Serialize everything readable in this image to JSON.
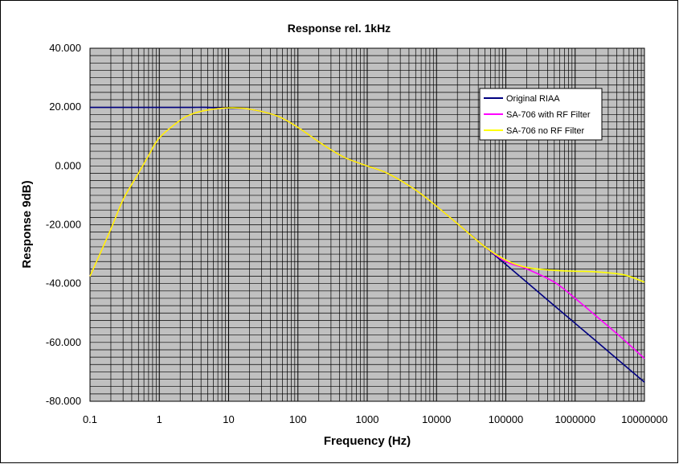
{
  "chart_data": {
    "type": "line",
    "title": "Response rel. 1kHz",
    "xlabel": "Frequency (Hz)",
    "ylabel": "Response 9dB)",
    "xscale": "log",
    "xlim": [
      0.1,
      10000000
    ],
    "ylim": [
      -80,
      40
    ],
    "x_tick_labels": [
      "0.1",
      "1",
      "10",
      "100",
      "1000",
      "10000",
      "100000",
      "1000000",
      "10000000"
    ],
    "y_tick_labels": [
      "40.000",
      "20.000",
      "0.000",
      "-20.000",
      "-40.000",
      "-60.000",
      "-80.000"
    ],
    "grid": true,
    "legend_position": "top-right",
    "plot_background": "#c0c0c0",
    "series": [
      {
        "name": "Original RIAA",
        "color": "#000080",
        "x": [
          0.1,
          1,
          2,
          3,
          5,
          10,
          20,
          50,
          100,
          200,
          300,
          500,
          1000,
          2000,
          5000,
          10000,
          20000,
          50000,
          100000,
          200000,
          500000,
          1000000,
          2000000,
          5000000,
          10000000
        ],
        "y": [
          19.9,
          19.9,
          19.9,
          19.9,
          19.9,
          19.6,
          19.3,
          17.0,
          13.1,
          8.2,
          5.5,
          2.6,
          0.0,
          -2.6,
          -8.2,
          -13.7,
          -19.6,
          -27.5,
          -33.5,
          -39.5,
          -47.5,
          -53.5,
          -59.5,
          -67.5,
          -73.5
        ]
      },
      {
        "name": "SA-706 with RF Filter",
        "color": "#ff00ff",
        "x": [
          0.1,
          0.2,
          0.3,
          0.5,
          0.7,
          1,
          2,
          3,
          5,
          10,
          20,
          50,
          100,
          200,
          300,
          500,
          1000,
          2000,
          5000,
          10000,
          20000,
          50000,
          100000,
          200000,
          500000,
          1000000,
          2000000,
          5000000,
          10000000
        ],
        "y": [
          -37.5,
          -21.5,
          -11.5,
          -2.5,
          3.5,
          9.5,
          15.5,
          17.7,
          19.0,
          19.7,
          19.3,
          17.0,
          13.1,
          8.2,
          5.5,
          2.6,
          0.0,
          -2.6,
          -8.2,
          -13.7,
          -19.6,
          -27.5,
          -32.5,
          -35.0,
          -39.5,
          -45.0,
          -51.0,
          -59.0,
          -65.5
        ]
      },
      {
        "name": "SA-706 no RF Filter",
        "color": "#ffff00",
        "x": [
          0.1,
          0.2,
          0.3,
          0.5,
          0.7,
          1,
          2,
          3,
          5,
          10,
          20,
          50,
          100,
          200,
          300,
          500,
          1000,
          2000,
          5000,
          10000,
          20000,
          50000,
          100000,
          200000,
          500000,
          1000000,
          2000000,
          5000000,
          10000000
        ],
        "y": [
          -37.5,
          -21.5,
          -11.5,
          -2.5,
          3.5,
          9.5,
          15.5,
          17.7,
          19.0,
          19.7,
          19.3,
          17.0,
          13.1,
          8.2,
          5.5,
          2.6,
          0.0,
          -2.6,
          -8.2,
          -13.7,
          -19.6,
          -27.5,
          -32.0,
          -34.5,
          -35.5,
          -35.8,
          -36.0,
          -37.0,
          -39.5
        ]
      }
    ]
  }
}
